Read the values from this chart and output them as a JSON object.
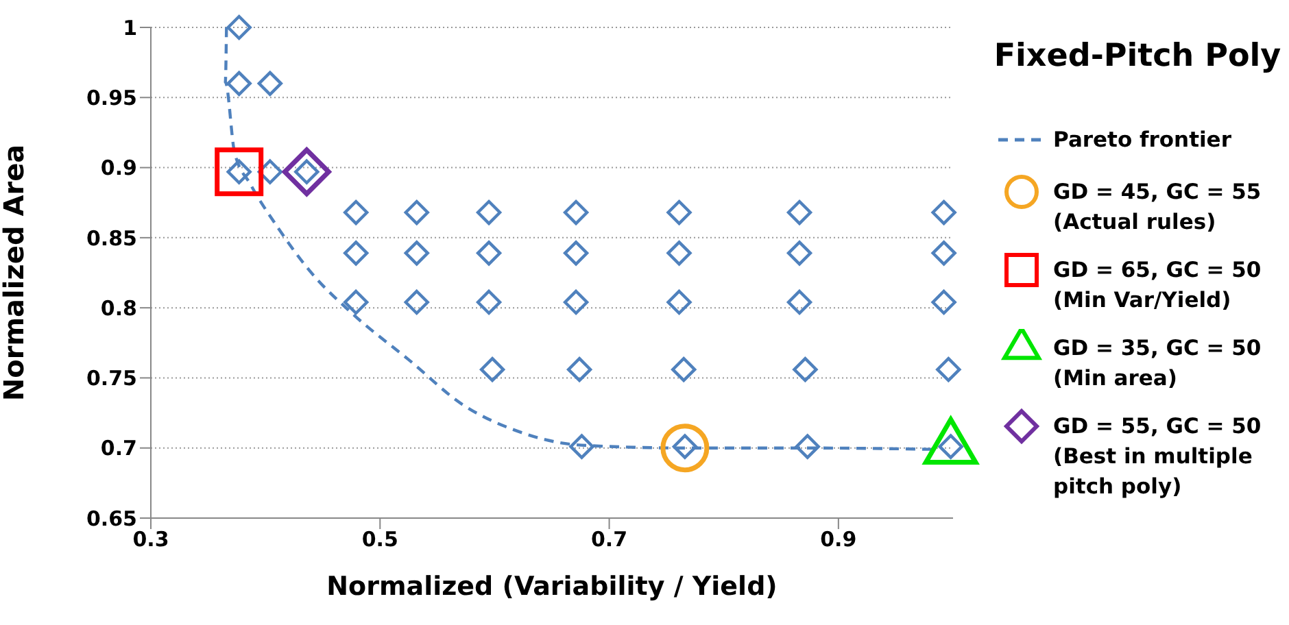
{
  "chart_data": {
    "type": "scatter",
    "title": "Fixed-Pitch Poly",
    "xlabel": "Normalized (Variability / Yield)",
    "ylabel": "Normalized Area",
    "xlim": [
      0.3,
      1.0
    ],
    "xticks": [
      0.3,
      0.5,
      0.7,
      0.9
    ],
    "ylim": [
      0.65,
      1.0
    ],
    "yticks": [
      0.65,
      0.7,
      0.75,
      0.8,
      0.85,
      0.9,
      0.95,
      1
    ],
    "grid": "y",
    "legend": "right",
    "series": [
      {
        "type": "line",
        "name": "Pareto frontier",
        "color": "#4f81bd",
        "line_style": "dashed",
        "marker": "none",
        "x": [
          0.366,
          0.365,
          0.373,
          0.387,
          0.411,
          0.439,
          0.477,
          0.525,
          0.572,
          0.62,
          0.676,
          0.766,
          0.873,
          0.985
        ],
        "values": [
          1.0,
          0.961,
          0.911,
          0.888,
          0.857,
          0.826,
          0.795,
          0.763,
          0.731,
          0.712,
          0.702,
          0.7,
          0.7,
          0.699
        ]
      },
      {
        "color": "#4f81bd",
        "marker": "diamond",
        "x": [
          0.377,
          0.377,
          0.404,
          0.377,
          0.404,
          0.436,
          0.479,
          0.532,
          0.595,
          0.671,
          0.761,
          0.866,
          0.992,
          0.479,
          0.532,
          0.595,
          0.671,
          0.761,
          0.866,
          0.992,
          0.479,
          0.532,
          0.595,
          0.671,
          0.761,
          0.866,
          0.992,
          0.598,
          0.674,
          0.765,
          0.871,
          0.996,
          0.676,
          0.766,
          0.873,
          0.998
        ],
        "values": [
          1.0,
          0.96,
          0.96,
          0.897,
          0.897,
          0.897,
          0.868,
          0.868,
          0.868,
          0.868,
          0.868,
          0.868,
          0.868,
          0.839,
          0.839,
          0.839,
          0.839,
          0.839,
          0.839,
          0.839,
          0.804,
          0.804,
          0.804,
          0.804,
          0.804,
          0.804,
          0.804,
          0.756,
          0.756,
          0.756,
          0.756,
          0.756,
          0.701,
          0.701,
          0.701,
          0.701
        ]
      },
      {
        "name": "GD = 45, GC = 55 (Actual rules)",
        "color": "#f5a623",
        "marker": "circle",
        "x": [
          0.766
        ],
        "values": [
          0.7
        ]
      },
      {
        "name": "GD = 65, GC = 50 (Min Var/Yield)",
        "color": "#ff0000",
        "marker": "square",
        "x": [
          0.377
        ],
        "values": [
          0.897
        ]
      },
      {
        "name": "GD = 35, GC = 50 (Min area)",
        "color": "#00e600",
        "marker": "triangle",
        "x": [
          0.998
        ],
        "values": [
          0.7
        ]
      },
      {
        "name": "GD = 55, GC = 50 (Best in multiple pitch poly)",
        "color": "#7030a0",
        "marker": "diamond",
        "x": [
          0.436
        ],
        "values": [
          0.897
        ]
      }
    ]
  }
}
